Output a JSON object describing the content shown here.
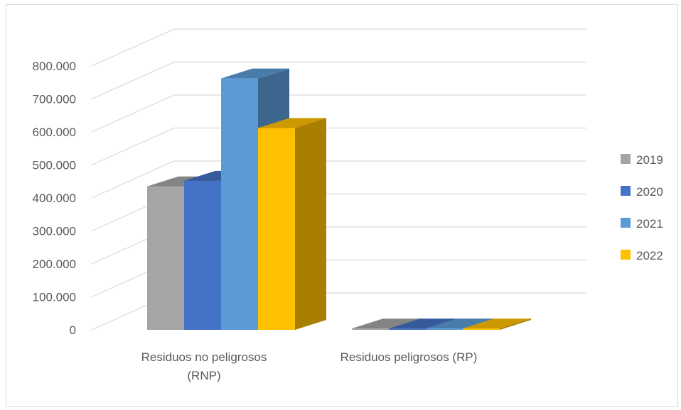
{
  "chart_data": {
    "type": "bar",
    "style": "3d-clustered-column",
    "categories": [
      [
        "Residuos no peligrosos",
        "(RNP)"
      ],
      [
        "Residuos peligrosos (RP)"
      ]
    ],
    "series": [
      {
        "name": "2019",
        "values": [
          435000,
          4000
        ],
        "color": "#a5a5a5"
      },
      {
        "name": "2020",
        "values": [
          452000,
          4000
        ],
        "color": "#4472c4"
      },
      {
        "name": "2021",
        "values": [
          762000,
          4000
        ],
        "color": "#5b9bd5"
      },
      {
        "name": "2022",
        "values": [
          612000,
          4000
        ],
        "color": "#ffc000"
      }
    ],
    "yticks": [
      "0",
      "100.000",
      "200.000",
      "300.000",
      "400.000",
      "500.000",
      "600.000",
      "700.000",
      "800.000"
    ],
    "ylim": [
      0,
      800000
    ],
    "grid": true,
    "legend_position": "right",
    "gridline_color": "#d9d9d9"
  }
}
